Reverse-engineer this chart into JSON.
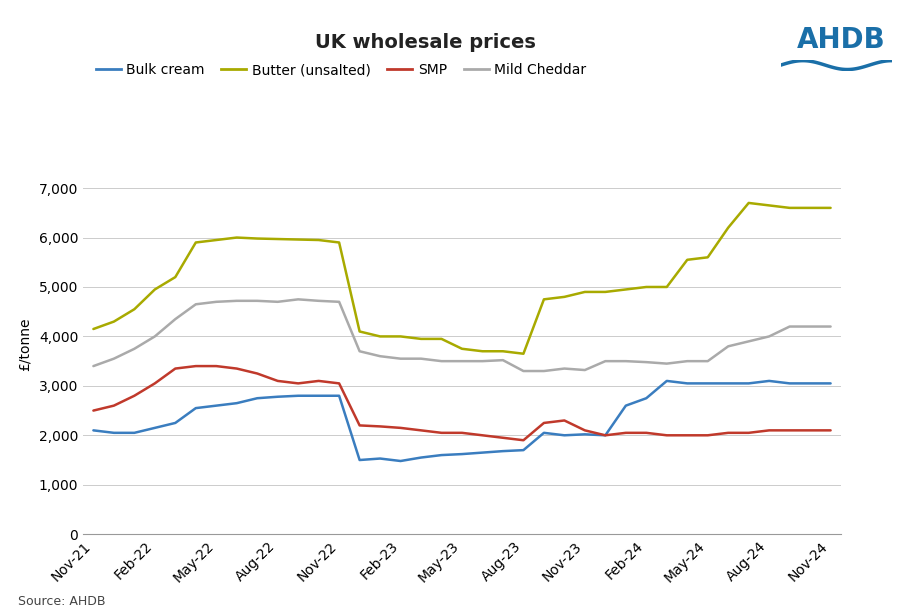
{
  "title": "UK wholesale prices",
  "ylabel": "£/tonne",
  "source": "Source: AHDB",
  "yticks": [
    0,
    1000,
    2000,
    3000,
    4000,
    5000,
    6000,
    7000
  ],
  "ylim": [
    0,
    7700
  ],
  "x_labels": [
    "Nov-21",
    "Feb-22",
    "May-22",
    "Aug-22",
    "Nov-22",
    "Feb-23",
    "May-23",
    "Aug-23",
    "Nov-23",
    "Feb-24",
    "May-24",
    "Aug-24",
    "Nov-24"
  ],
  "series": {
    "Bulk cream": {
      "color": "#3a7dbf",
      "data": [
        2100,
        2050,
        2050,
        2150,
        2250,
        2550,
        2600,
        2650,
        2750,
        2780,
        2800,
        2800,
        2800,
        1500,
        1530,
        1480,
        1550,
        1600,
        1620,
        1650,
        1680,
        1700,
        2050,
        2000,
        2020,
        2000,
        2600,
        2750,
        3100,
        3050,
        3050,
        3050,
        3050,
        3100,
        3050,
        3050,
        3050
      ]
    },
    "Butter (unsalted)": {
      "color": "#a8aa00",
      "data": [
        4150,
        4300,
        4550,
        4950,
        5200,
        5900,
        5950,
        6000,
        5980,
        5970,
        5960,
        5950,
        5900,
        4100,
        4000,
        4000,
        3950,
        3950,
        3750,
        3700,
        3700,
        3650,
        4750,
        4800,
        4900,
        4900,
        4950,
        5000,
        5000,
        5550,
        5600,
        6200,
        6700,
        6650,
        6600,
        6600,
        6600
      ]
    },
    "SMP": {
      "color": "#c0392b",
      "data": [
        2500,
        2600,
        2800,
        3050,
        3350,
        3400,
        3400,
        3350,
        3250,
        3100,
        3050,
        3100,
        3050,
        2200,
        2180,
        2150,
        2100,
        2050,
        2050,
        2000,
        1950,
        1900,
        2250,
        2300,
        2100,
        2000,
        2050,
        2050,
        2000,
        2000,
        2000,
        2050,
        2050,
        2100,
        2100,
        2100,
        2100
      ]
    },
    "Mild Cheddar": {
      "color": "#aaaaaa",
      "data": [
        3400,
        3550,
        3750,
        4000,
        4350,
        4650,
        4700,
        4720,
        4720,
        4700,
        4750,
        4720,
        4700,
        3700,
        3600,
        3550,
        3550,
        3500,
        3500,
        3500,
        3520,
        3300,
        3300,
        3350,
        3320,
        3500,
        3500,
        3480,
        3450,
        3500,
        3500,
        3800,
        3900,
        4000,
        4200,
        4200,
        4200
      ]
    }
  },
  "n_points": 37,
  "x_tick_positions": [
    0,
    3,
    6,
    9,
    12,
    15,
    18,
    21,
    24,
    27,
    30,
    33,
    36
  ],
  "background_color": "#ffffff",
  "title_fontsize": 14,
  "legend_fontsize": 10,
  "axis_fontsize": 10,
  "source_fontsize": 9,
  "ahdb_color": "#1a6fa8"
}
